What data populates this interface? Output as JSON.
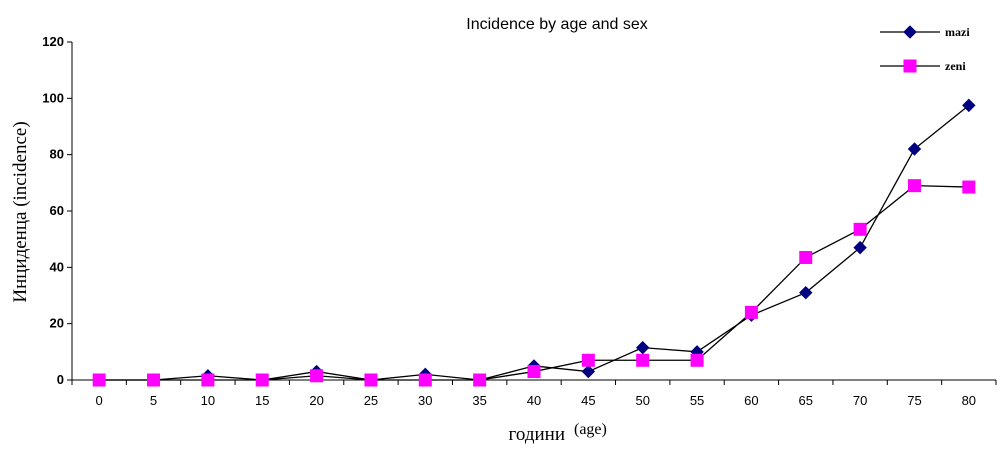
{
  "chart_data": {
    "type": "line",
    "title": "Incidence by age and sex",
    "xlabel": "години",
    "xlabel_suffix": "(age)",
    "ylabel": "Инциденца  (incidence)",
    "categories": [
      "0",
      "5",
      "10",
      "15",
      "20",
      "25",
      "30",
      "35",
      "40",
      "45",
      "50",
      "55",
      "60",
      "65",
      "70",
      "75",
      "80"
    ],
    "ylim": [
      0,
      120
    ],
    "yticks": [
      "0",
      "20",
      "40",
      "60",
      "80",
      "100",
      "120"
    ],
    "grid": false,
    "legend_position": "top-right",
    "series": [
      {
        "name": "mazi",
        "color": "#000080",
        "marker": "diamond",
        "values": [
          0,
          0,
          1.5,
          0,
          3,
          0,
          2,
          0,
          5,
          3,
          11.5,
          10,
          23,
          31,
          47,
          82,
          97.5
        ]
      },
      {
        "name": "zeni",
        "color": "#ff00ff",
        "marker": "square",
        "values": [
          0,
          0,
          0,
          0,
          1.5,
          0,
          0,
          0,
          3,
          7,
          7,
          7,
          24,
          43.5,
          53.5,
          69,
          68.5
        ]
      }
    ]
  }
}
